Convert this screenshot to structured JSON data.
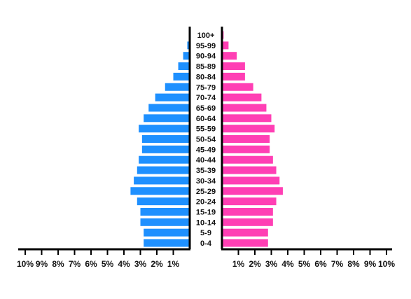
{
  "chart_data": {
    "type": "bar",
    "subtype": "population-pyramid",
    "title": "",
    "xlabel": "",
    "ylabel": "",
    "categories": [
      "0-4",
      "5-9",
      "10-14",
      "15-19",
      "20-24",
      "25-29",
      "30-34",
      "35-39",
      "40-44",
      "45-49",
      "50-54",
      "55-59",
      "60-64",
      "65-69",
      "70-74",
      "75-79",
      "80-84",
      "85-89",
      "90-94",
      "95-99",
      "100+"
    ],
    "series": [
      {
        "color": "#1e90ff",
        "side": "left",
        "values": [
          2.8,
          2.8,
          3.0,
          3.0,
          3.2,
          3.6,
          3.4,
          3.2,
          3.1,
          2.9,
          2.9,
          3.1,
          2.8,
          2.5,
          2.1,
          1.5,
          1.0,
          0.7,
          0.4,
          0.15,
          0.0
        ]
      },
      {
        "color": "#ff3fb4",
        "side": "right",
        "values": [
          2.8,
          2.8,
          3.1,
          3.1,
          3.3,
          3.7,
          3.5,
          3.3,
          3.1,
          2.9,
          2.9,
          3.2,
          3.0,
          2.7,
          2.4,
          1.9,
          1.4,
          1.4,
          0.9,
          0.4,
          0.1
        ]
      }
    ],
    "xlim": [
      0,
      10
    ],
    "xticks_left": [
      "10%",
      "9%",
      "8%",
      "7%",
      "6%",
      "5%",
      "4%",
      "3%",
      "2%",
      "1%"
    ],
    "xticks_right": [
      "1%",
      "2%",
      "3%",
      "4%",
      "5%",
      "6%",
      "7%",
      "8%",
      "9%",
      "10%"
    ],
    "grid": false,
    "legend": "none"
  }
}
